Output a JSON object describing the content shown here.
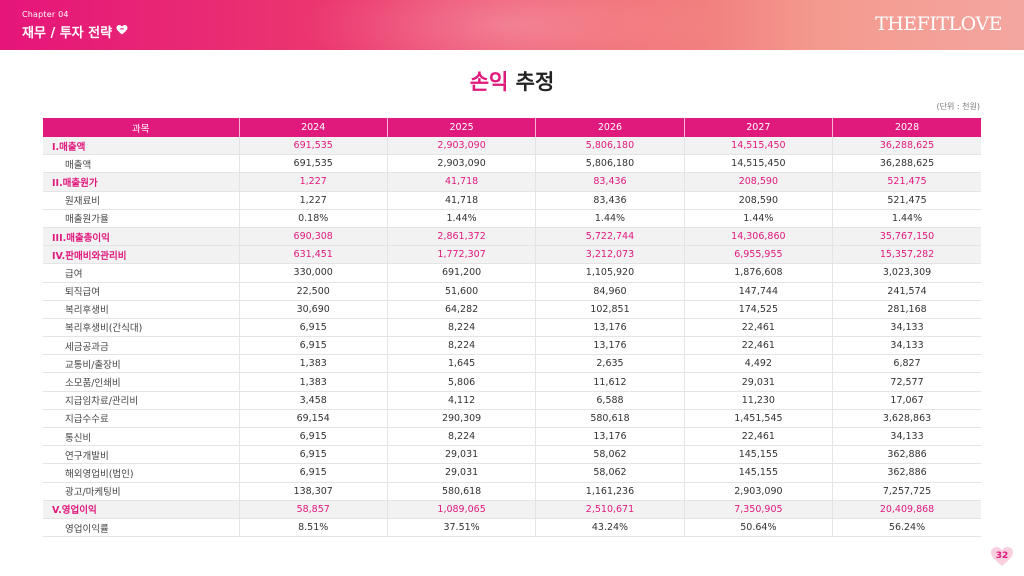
{
  "header": {
    "chapter": "Chapter 04",
    "section_title": "재무 / 투자 전략",
    "brand": "THEFITLOVE"
  },
  "page": {
    "title_accent": "손익",
    "title_rest": " 추정",
    "unit": "(단위 : 천원)",
    "page_number": "32"
  },
  "colors": {
    "accent": "#e0197d",
    "category_row_bg": "#f2f2f2"
  },
  "icons": {
    "header": "heart-icon",
    "page_number": "heart-icon"
  },
  "table": {
    "headers": [
      "과목",
      "2024",
      "2025",
      "2026",
      "2027",
      "2028"
    ],
    "rows": [
      {
        "type": "category",
        "cells": [
          "I.매출액",
          "691,535",
          "2,903,090",
          "5,806,180",
          "14,515,450",
          "36,288,625"
        ]
      },
      {
        "type": "item",
        "cells": [
          "매출액",
          "691,535",
          "2,903,090",
          "5,806,180",
          "14,515,450",
          "36,288,625"
        ]
      },
      {
        "type": "category",
        "cells": [
          "II.매출원가",
          "1,227",
          "41,718",
          "83,436",
          "208,590",
          "521,475"
        ]
      },
      {
        "type": "item",
        "cells": [
          "원재료비",
          "1,227",
          "41,718",
          "83,436",
          "208,590",
          "521,475"
        ]
      },
      {
        "type": "item",
        "cells": [
          "매출원가율",
          "0.18%",
          "1.44%",
          "1.44%",
          "1.44%",
          "1.44%"
        ]
      },
      {
        "type": "category",
        "cells": [
          "III.매출총이익",
          "690,308",
          "2,861,372",
          "5,722,744",
          "14,306,860",
          "35,767,150"
        ]
      },
      {
        "type": "category",
        "cells": [
          "IV.판매비와관리비",
          "631,451",
          "1,772,307",
          "3,212,073",
          "6,955,955",
          "15,357,282"
        ]
      },
      {
        "type": "item",
        "cells": [
          "급여",
          "330,000",
          "691,200",
          "1,105,920",
          "1,876,608",
          "3,023,309"
        ]
      },
      {
        "type": "item",
        "cells": [
          "퇴직급여",
          "22,500",
          "51,600",
          "84,960",
          "147,744",
          "241,574"
        ]
      },
      {
        "type": "item",
        "cells": [
          "복리후생비",
          "30,690",
          "64,282",
          "102,851",
          "174,525",
          "281,168"
        ]
      },
      {
        "type": "item",
        "cells": [
          "복리후생비(간식대)",
          "6,915",
          "8,224",
          "13,176",
          "22,461",
          "34,133"
        ]
      },
      {
        "type": "item",
        "cells": [
          "세금공과금",
          "6,915",
          "8,224",
          "13,176",
          "22,461",
          "34,133"
        ]
      },
      {
        "type": "item",
        "cells": [
          "교통비/출장비",
          "1,383",
          "1,645",
          "2,635",
          "4,492",
          "6,827"
        ]
      },
      {
        "type": "item",
        "cells": [
          "소모품/인쇄비",
          "1,383",
          "5,806",
          "11,612",
          "29,031",
          "72,577"
        ]
      },
      {
        "type": "item",
        "cells": [
          "지급임차료/관리비",
          "3,458",
          "4,112",
          "6,588",
          "11,230",
          "17,067"
        ]
      },
      {
        "type": "item",
        "cells": [
          "지급수수료",
          "69,154",
          "290,309",
          "580,618",
          "1,451,545",
          "3,628,863"
        ]
      },
      {
        "type": "item",
        "cells": [
          "통신비",
          "6,915",
          "8,224",
          "13,176",
          "22,461",
          "34,133"
        ]
      },
      {
        "type": "item",
        "cells": [
          "연구개발비",
          "6,915",
          "29,031",
          "58,062",
          "145,155",
          "362,886"
        ]
      },
      {
        "type": "item",
        "cells": [
          "해외영업비(법인)",
          "6,915",
          "29,031",
          "58,062",
          "145,155",
          "362,886"
        ]
      },
      {
        "type": "item",
        "cells": [
          "광고/마케팅비",
          "138,307",
          "580,618",
          "1,161,236",
          "2,903,090",
          "7,257,725"
        ]
      },
      {
        "type": "category",
        "cells": [
          "V.영업이익",
          "58,857",
          "1,089,065",
          "2,510,671",
          "7,350,905",
          "20,409,868"
        ]
      },
      {
        "type": "item",
        "cells": [
          "영업이익률",
          "8.51%",
          "37.51%",
          "43.24%",
          "50.64%",
          "56.24%"
        ]
      }
    ]
  }
}
